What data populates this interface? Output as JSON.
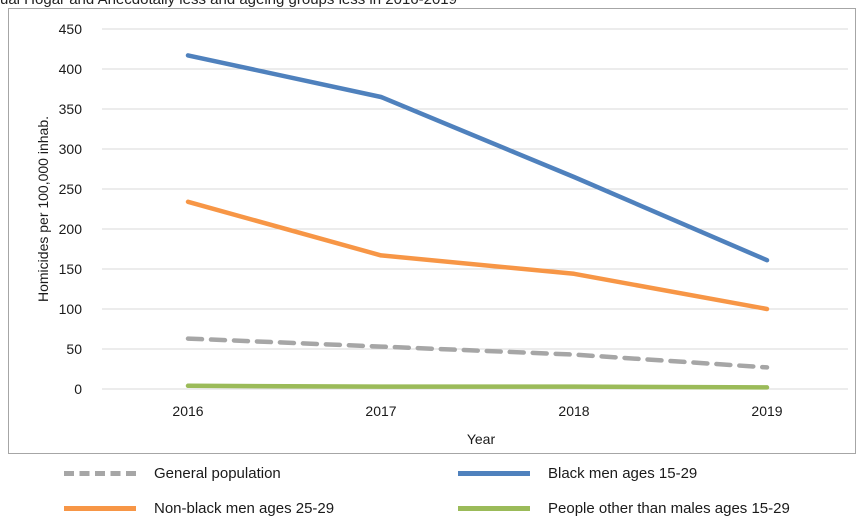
{
  "title": "ual Hogar and Anecdotally less and ageing groups less in 2016-2019",
  "chart_data": {
    "type": "line",
    "x": [
      "2016",
      "2017",
      "2018",
      "2019"
    ],
    "xlabel": "Year",
    "ylabel": "Homicides per 100,000 inhab.",
    "ylim": [
      0,
      450
    ],
    "yticks": [
      "0",
      "50",
      "100",
      "150",
      "200",
      "250",
      "300",
      "350",
      "400",
      "450"
    ],
    "grid": true,
    "legend_position": "bottom",
    "series": [
      {
        "name": "General population",
        "values": [
          63,
          53,
          43,
          27
        ],
        "color": "#a6a6a6",
        "dashed": true
      },
      {
        "name": "Black men ages 15-29",
        "values": [
          417,
          365,
          265,
          161
        ],
        "color": "#4f81bd",
        "dashed": false
      },
      {
        "name": "Non-black men ages 25-29",
        "values": [
          234,
          167,
          144,
          100
        ],
        "color": "#f79646",
        "dashed": false
      },
      {
        "name": "People other than males ages 15-29",
        "values": [
          4,
          3,
          3,
          2
        ],
        "color": "#9bbb59",
        "dashed": false
      }
    ]
  }
}
